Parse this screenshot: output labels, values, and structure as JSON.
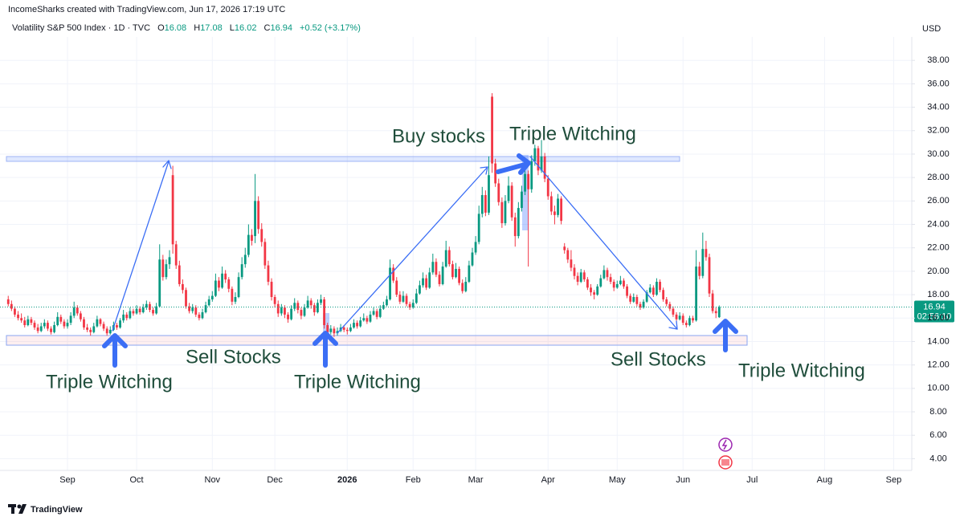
{
  "chart_data": {
    "type": "candlestick",
    "attribution": "IncomeSharks created with TradingView.com, Jun 17, 2026 17:19 UTC",
    "symbol": "Volatility S&P 500 Index · 1D · TVC",
    "ohlc_labels": [
      "O",
      "H",
      "L",
      "C"
    ],
    "change": "+0.52 (+3.17%)",
    "currency": "USD",
    "countdown": "02:56:10",
    "brand": "TradingView",
    "up_color": "#089981",
    "down_color": "#f23645",
    "grid": true,
    "ylim": [
      3,
      40
    ],
    "yticks": [
      {
        "value": 4,
        "label": "4.00"
      },
      {
        "value": 6,
        "label": "6.00"
      },
      {
        "value": 8,
        "label": "8.00"
      },
      {
        "value": 10,
        "label": "10.00"
      },
      {
        "value": 12,
        "label": "12.00"
      },
      {
        "value": 14,
        "label": "14.00"
      },
      {
        "value": 16,
        "label": "16.00"
      },
      {
        "value": 18,
        "label": "18.00"
      },
      {
        "value": 20,
        "label": "20.00"
      },
      {
        "value": 22,
        "label": "22.00"
      },
      {
        "value": 24,
        "label": "24.00"
      },
      {
        "value": 26,
        "label": "26.00"
      },
      {
        "value": 28,
        "label": "28.00"
      },
      {
        "value": 30,
        "label": "30.00"
      },
      {
        "value": 32,
        "label": "32.00"
      },
      {
        "value": 34,
        "label": "34.00"
      },
      {
        "value": 36,
        "label": "36.00"
      },
      {
        "value": 38,
        "label": "38.00"
      }
    ],
    "xlim": [
      -2.5,
      274.5
    ],
    "xticks": [
      {
        "value": 18,
        "label": "Sep"
      },
      {
        "value": 39,
        "label": "Oct"
      },
      {
        "value": 62,
        "label": "Nov"
      },
      {
        "value": 81,
        "label": "Dec"
      },
      {
        "value": 103,
        "label": "2026"
      },
      {
        "value": 123,
        "label": "Feb"
      },
      {
        "value": 142,
        "label": "Mar"
      },
      {
        "value": 164,
        "label": "Apr"
      },
      {
        "value": 185,
        "label": "May"
      },
      {
        "value": 205,
        "label": "Jun"
      },
      {
        "value": 226,
        "label": "Jul"
      },
      {
        "value": 248,
        "label": "Aug"
      },
      {
        "value": 269,
        "label": "Sep"
      }
    ],
    "annotations": [
      "Buy stocks",
      "Triple Witching",
      "Triple Witching",
      "Sell Stocks",
      "Triple Witching",
      "Sell Stocks",
      "Triple Witching"
    ],
    "ohlc": [
      [
        17.6,
        17.9,
        17.0,
        17.2
      ],
      [
        17.2,
        17.5,
        16.6,
        16.8
      ],
      [
        16.8,
        17.0,
        16.1,
        16.3
      ],
      [
        16.3,
        16.6,
        15.8,
        16.0
      ],
      [
        16.0,
        16.4,
        15.6,
        15.8
      ],
      [
        15.8,
        16.1,
        15.2,
        15.4
      ],
      [
        15.4,
        16.2,
        15.3,
        15.9
      ],
      [
        15.9,
        16.1,
        15.4,
        15.6
      ],
      [
        15.6,
        15.8,
        15.0,
        15.2
      ],
      [
        15.2,
        15.5,
        14.7,
        14.9
      ],
      [
        14.9,
        15.6,
        14.8,
        15.3
      ],
      [
        15.3,
        15.9,
        15.1,
        15.6
      ],
      [
        15.6,
        15.8,
        14.9,
        15.1
      ],
      [
        15.1,
        15.3,
        14.6,
        14.8
      ],
      [
        14.8,
        15.7,
        14.7,
        15.4
      ],
      [
        15.4,
        16.5,
        15.3,
        16.1
      ],
      [
        16.1,
        16.3,
        15.5,
        15.7
      ],
      [
        15.7,
        15.9,
        15.1,
        15.3
      ],
      [
        15.3,
        15.9,
        15.1,
        15.6
      ],
      [
        15.6,
        16.5,
        15.4,
        16.2
      ],
      [
        16.2,
        17.4,
        16.0,
        16.9
      ],
      [
        16.9,
        17.1,
        16.2,
        16.4
      ],
      [
        16.4,
        16.6,
        15.7,
        15.9
      ],
      [
        15.9,
        16.1,
        15.0,
        15.2
      ],
      [
        15.2,
        15.5,
        14.8,
        15.0
      ],
      [
        15.0,
        15.2,
        14.5,
        14.8
      ],
      [
        14.8,
        15.6,
        14.7,
        15.3
      ],
      [
        15.3,
        16.2,
        15.2,
        15.9
      ],
      [
        15.9,
        16.0,
        15.3,
        15.5
      ],
      [
        15.5,
        15.7,
        14.9,
        15.1
      ],
      [
        15.1,
        15.3,
        14.5,
        14.7
      ],
      [
        14.7,
        15.3,
        14.6,
        15.0
      ],
      [
        15.0,
        15.7,
        14.9,
        15.4
      ],
      [
        15.4,
        15.6,
        15.0,
        15.2
      ],
      [
        15.2,
        16.0,
        15.1,
        15.8
      ],
      [
        15.8,
        16.7,
        15.6,
        16.3
      ],
      [
        16.3,
        16.5,
        15.8,
        16.0
      ],
      [
        16.0,
        16.9,
        15.9,
        16.6
      ],
      [
        16.6,
        16.8,
        16.2,
        16.4
      ],
      [
        16.4,
        17.1,
        16.3,
        16.8
      ],
      [
        16.8,
        17.0,
        16.3,
        16.5
      ],
      [
        16.5,
        17.2,
        16.4,
        16.9
      ],
      [
        16.9,
        17.5,
        16.7,
        17.2
      ],
      [
        17.2,
        17.4,
        16.5,
        16.7
      ],
      [
        16.7,
        16.9,
        16.2,
        16.4
      ],
      [
        16.4,
        17.3,
        16.3,
        17.0
      ],
      [
        17.0,
        22.3,
        16.9,
        21.0
      ],
      [
        21.0,
        21.4,
        19.2,
        19.5
      ],
      [
        19.5,
        21.0,
        19.3,
        20.6
      ],
      [
        20.6,
        21.8,
        20.2,
        21.2
      ],
      [
        28.2,
        29.0,
        21.5,
        22.3
      ],
      [
        22.3,
        22.6,
        20.2,
        20.5
      ],
      [
        20.5,
        20.9,
        18.7,
        18.9
      ],
      [
        18.9,
        19.3,
        18.1,
        18.4
      ],
      [
        18.4,
        18.6,
        16.8,
        17.0
      ],
      [
        17.0,
        17.3,
        16.4,
        16.6
      ],
      [
        16.6,
        17.2,
        16.4,
        16.9
      ],
      [
        16.9,
        17.1,
        16.1,
        16.3
      ],
      [
        16.3,
        16.5,
        15.8,
        16.0
      ],
      [
        16.0,
        16.8,
        15.9,
        16.5
      ],
      [
        16.5,
        17.4,
        16.4,
        17.1
      ],
      [
        17.1,
        17.9,
        17.0,
        17.6
      ],
      [
        17.6,
        18.3,
        17.4,
        17.9
      ],
      [
        17.9,
        19.8,
        17.8,
        19.2
      ],
      [
        19.2,
        19.5,
        18.3,
        18.6
      ],
      [
        18.6,
        20.4,
        18.5,
        19.8
      ],
      [
        19.8,
        20.1,
        19.0,
        19.3
      ],
      [
        19.3,
        19.5,
        18.2,
        18.5
      ],
      [
        18.5,
        18.7,
        17.1,
        17.4
      ],
      [
        17.4,
        18.2,
        17.2,
        17.8
      ],
      [
        17.8,
        19.9,
        17.7,
        19.5
      ],
      [
        19.5,
        21.2,
        19.3,
        20.6
      ],
      [
        20.6,
        22.0,
        20.3,
        21.4
      ],
      [
        21.4,
        24.0,
        21.2,
        23.1
      ],
      [
        23.1,
        23.6,
        22.2,
        22.6
      ],
      [
        23.0,
        28.3,
        22.4,
        26.0
      ],
      [
        26.0,
        26.4,
        23.2,
        23.6
      ],
      [
        23.6,
        24.1,
        22.1,
        22.5
      ],
      [
        22.5,
        22.8,
        20.2,
        20.5
      ],
      [
        20.5,
        20.9,
        18.8,
        19.1
      ],
      [
        19.1,
        19.4,
        17.5,
        17.8
      ],
      [
        17.8,
        18.0,
        16.9,
        17.2
      ],
      [
        17.2,
        17.5,
        16.1,
        16.4
      ],
      [
        16.4,
        17.2,
        16.2,
        16.9
      ],
      [
        16.9,
        17.1,
        16.0,
        16.3
      ],
      [
        16.3,
        16.5,
        15.6,
        15.9
      ],
      [
        15.9,
        17.1,
        15.8,
        16.8
      ],
      [
        16.8,
        17.7,
        16.6,
        17.3
      ],
      [
        17.3,
        17.5,
        16.4,
        16.7
      ],
      [
        16.7,
        16.9,
        15.9,
        16.2
      ],
      [
        16.2,
        17.2,
        16.1,
        16.9
      ],
      [
        16.9,
        17.9,
        16.8,
        17.5
      ],
      [
        17.5,
        17.7,
        16.8,
        17.1
      ],
      [
        17.1,
        17.3,
        16.2,
        16.5
      ],
      [
        16.5,
        17.6,
        16.4,
        17.3
      ],
      [
        17.3,
        18.0,
        17.1,
        17.6
      ],
      [
        17.6,
        17.8,
        15.1,
        15.4
      ],
      [
        15.4,
        15.6,
        14.3,
        14.8
      ],
      [
        14.8,
        15.4,
        14.6,
        15.1
      ],
      [
        15.1,
        15.3,
        14.4,
        14.7
      ],
      [
        14.7,
        15.2,
        14.5,
        14.9
      ],
      [
        14.9,
        15.5,
        14.8,
        15.2
      ],
      [
        15.2,
        15.4,
        14.8,
        15.0
      ],
      [
        15.0,
        15.2,
        14.6,
        14.9
      ],
      [
        14.9,
        15.5,
        14.8,
        15.2
      ],
      [
        15.2,
        15.9,
        15.1,
        15.6
      ],
      [
        15.6,
        15.8,
        15.1,
        15.3
      ],
      [
        15.3,
        16.1,
        15.2,
        15.8
      ],
      [
        15.8,
        16.4,
        15.7,
        16.0
      ],
      [
        16.0,
        16.2,
        15.5,
        15.7
      ],
      [
        15.7,
        16.6,
        15.6,
        16.3
      ],
      [
        16.3,
        16.9,
        16.2,
        16.6
      ],
      [
        16.6,
        16.8,
        15.9,
        16.1
      ],
      [
        16.1,
        17.1,
        16.0,
        16.8
      ],
      [
        16.8,
        17.4,
        16.7,
        17.1
      ],
      [
        17.1,
        17.9,
        17.0,
        17.6
      ],
      [
        17.6,
        21.0,
        17.5,
        20.3
      ],
      [
        20.3,
        20.6,
        19.0,
        19.2
      ],
      [
        19.2,
        19.5,
        17.8,
        18.0
      ],
      [
        18.0,
        18.3,
        17.2,
        17.4
      ],
      [
        17.4,
        18.3,
        17.3,
        17.9
      ],
      [
        17.9,
        18.1,
        17.0,
        17.2
      ],
      [
        17.2,
        17.4,
        16.7,
        16.9
      ],
      [
        16.9,
        17.6,
        16.8,
        17.3
      ],
      [
        17.3,
        18.5,
        17.2,
        18.1
      ],
      [
        18.1,
        19.2,
        18.0,
        18.8
      ],
      [
        18.8,
        19.9,
        18.6,
        19.4
      ],
      [
        19.4,
        19.7,
        18.4,
        18.6
      ],
      [
        18.6,
        20.3,
        18.5,
        19.9
      ],
      [
        19.9,
        21.5,
        19.7,
        20.8
      ],
      [
        20.8,
        21.1,
        19.5,
        19.7
      ],
      [
        19.7,
        20.0,
        18.7,
        18.9
      ],
      [
        18.9,
        20.8,
        18.8,
        20.4
      ],
      [
        20.4,
        22.6,
        20.3,
        21.8
      ],
      [
        21.8,
        22.1,
        20.4,
        20.6
      ],
      [
        20.6,
        20.9,
        19.3,
        19.5
      ],
      [
        19.5,
        20.7,
        19.4,
        20.2
      ],
      [
        20.2,
        20.4,
        18.8,
        19.0
      ],
      [
        19.0,
        19.3,
        18.1,
        18.3
      ],
      [
        18.3,
        19.5,
        18.2,
        19.1
      ],
      [
        19.1,
        20.9,
        19.0,
        20.5
      ],
      [
        20.5,
        22.0,
        20.4,
        21.6
      ],
      [
        21.6,
        23.0,
        21.4,
        22.5
      ],
      [
        22.5,
        25.6,
        22.3,
        24.9
      ],
      [
        24.9,
        27.2,
        24.6,
        26.5
      ],
      [
        26.5,
        26.9,
        24.7,
        25.0
      ],
      [
        25.0,
        29.8,
        24.8,
        28.2
      ],
      [
        34.9,
        35.2,
        28.4,
        29.2
      ],
      [
        29.2,
        29.6,
        27.2,
        27.5
      ],
      [
        27.5,
        27.9,
        25.6,
        25.9
      ],
      [
        25.9,
        26.3,
        23.7,
        24.1
      ],
      [
        24.1,
        26.5,
        23.9,
        26.0
      ],
      [
        26.0,
        28.1,
        25.8,
        27.3
      ],
      [
        27.3,
        27.6,
        24.3,
        24.6
      ],
      [
        24.6,
        25.0,
        22.1,
        23.0
      ],
      [
        23.0,
        25.9,
        22.8,
        25.4
      ],
      [
        25.4,
        27.3,
        25.1,
        26.8
      ],
      [
        26.8,
        28.9,
        26.5,
        28.3
      ],
      [
        28.3,
        28.6,
        20.4,
        27.0
      ],
      [
        27.0,
        29.9,
        26.7,
        29.4
      ],
      [
        29.4,
        30.8,
        29.0,
        30.5
      ],
      [
        30.5,
        30.7,
        28.2,
        28.6
      ],
      [
        28.6,
        31.2,
        28.4,
        29.8
      ],
      [
        29.8,
        30.1,
        27.6,
        27.9
      ],
      [
        27.9,
        28.2,
        26.1,
        26.4
      ],
      [
        26.4,
        26.8,
        24.8,
        25.1
      ],
      [
        25.1,
        25.6,
        24.0,
        24.8
      ],
      [
        24.8,
        26.6,
        24.6,
        26.2
      ],
      [
        26.2,
        26.4,
        24.0,
        24.3
      ],
      [
        22.1,
        22.4,
        21.5,
        21.8
      ],
      [
        21.8,
        22.0,
        20.7,
        21.0
      ],
      [
        21.0,
        21.8,
        20.0,
        20.3
      ],
      [
        20.3,
        20.6,
        19.3,
        19.6
      ],
      [
        19.6,
        19.9,
        18.8,
        19.1
      ],
      [
        19.1,
        20.2,
        19.0,
        19.9
      ],
      [
        19.9,
        20.1,
        19.1,
        19.3
      ],
      [
        19.3,
        19.5,
        18.4,
        18.6
      ],
      [
        18.6,
        18.9,
        17.9,
        18.2
      ],
      [
        18.2,
        18.4,
        17.6,
        18.0
      ],
      [
        18.0,
        18.9,
        17.9,
        18.7
      ],
      [
        18.7,
        19.7,
        18.6,
        19.4
      ],
      [
        19.4,
        20.5,
        19.3,
        20.1
      ],
      [
        20.1,
        20.3,
        19.2,
        19.5
      ],
      [
        19.5,
        19.8,
        18.9,
        19.1
      ],
      [
        19.1,
        19.3,
        18.3,
        18.6
      ],
      [
        18.6,
        19.2,
        18.5,
        18.9
      ],
      [
        18.9,
        19.6,
        18.8,
        19.2
      ],
      [
        19.2,
        19.4,
        18.5,
        18.7
      ],
      [
        18.7,
        18.9,
        17.7,
        17.9
      ],
      [
        17.9,
        18.1,
        17.2,
        17.4
      ],
      [
        17.4,
        18.1,
        17.3,
        17.8
      ],
      [
        17.8,
        18.0,
        17.0,
        17.2
      ],
      [
        17.2,
        17.4,
        16.7,
        16.9
      ],
      [
        16.9,
        17.6,
        16.8,
        17.4
      ],
      [
        17.4,
        18.4,
        17.3,
        18.2
      ],
      [
        18.2,
        18.9,
        18.1,
        18.6
      ],
      [
        18.6,
        18.8,
        17.8,
        18.0
      ],
      [
        18.0,
        19.4,
        17.9,
        19.1
      ],
      [
        19.1,
        19.3,
        18.2,
        18.4
      ],
      [
        18.4,
        18.6,
        17.4,
        17.6
      ],
      [
        17.6,
        17.8,
        17.0,
        17.2
      ],
      [
        17.2,
        17.4,
        16.6,
        16.8
      ],
      [
        16.8,
        17.0,
        16.1,
        16.3
      ],
      [
        16.3,
        16.5,
        15.6,
        15.9
      ],
      [
        15.9,
        16.5,
        15.8,
        16.2
      ],
      [
        16.2,
        16.4,
        15.4,
        15.6
      ],
      [
        15.6,
        15.8,
        15.2,
        15.4
      ],
      [
        15.4,
        16.2,
        15.3,
        16.0
      ],
      [
        16.0,
        16.2,
        15.6,
        15.8
      ],
      [
        15.8,
        21.8,
        15.7,
        20.4
      ],
      [
        20.4,
        20.8,
        19.3,
        19.6
      ],
      [
        19.6,
        23.3,
        19.4,
        21.9
      ],
      [
        21.9,
        22.6,
        20.9,
        21.2
      ],
      [
        21.2,
        21.5,
        17.8,
        18.1
      ],
      [
        18.1,
        18.4,
        16.4,
        16.6
      ],
      [
        16.6,
        16.9,
        16.0,
        16.42
      ],
      [
        16.08,
        17.08,
        16.02,
        16.94
      ]
    ]
  }
}
